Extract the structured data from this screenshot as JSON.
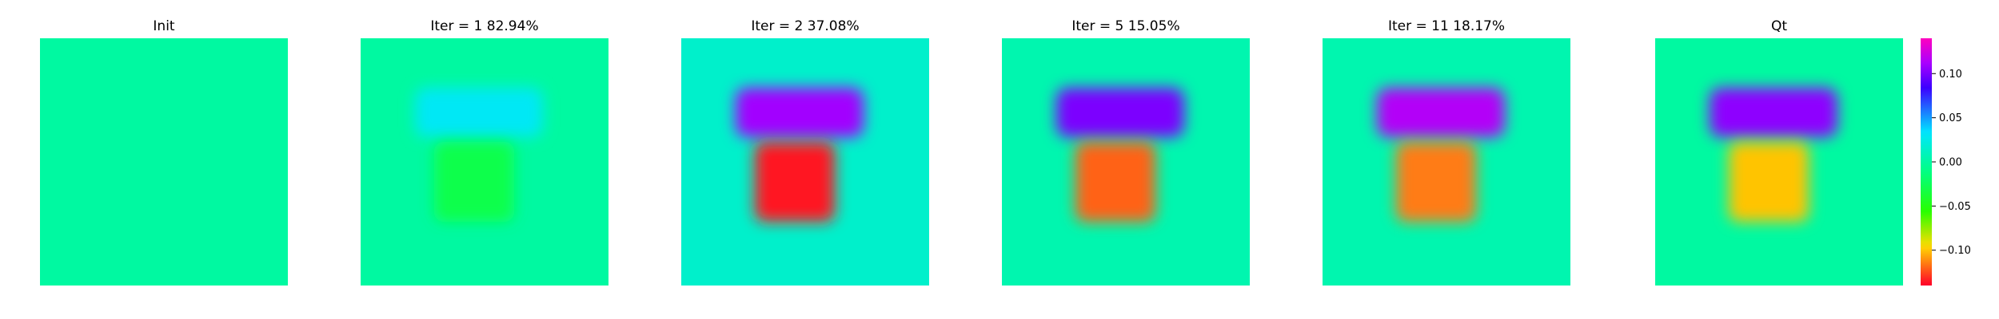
{
  "chart_data": {
    "type": "heatmap",
    "layout": "row of six field panels sharing one colorbar",
    "colormap": "gist_rainbow",
    "axes_visible": false,
    "grid": false,
    "panels": [
      {
        "title": "Init",
        "background_value": 0.0,
        "blocks": []
      },
      {
        "title": "Iter = 1    82.94%",
        "background_value": 0.0,
        "blocks": [
          {
            "name": "upper",
            "value": 0.03
          },
          {
            "name": "lower",
            "value": -0.03
          }
        ]
      },
      {
        "title": "Iter = 2    37.08%",
        "background_value": 0.015,
        "blocks": [
          {
            "name": "upper",
            "value": 0.11
          },
          {
            "name": "lower",
            "value": -0.135
          }
        ]
      },
      {
        "title": "Iter = 5    15.05%",
        "background_value": 0.005,
        "blocks": [
          {
            "name": "upper",
            "value": 0.1
          },
          {
            "name": "lower",
            "value": -0.12
          }
        ]
      },
      {
        "title": "Iter = 11    18.17%",
        "background_value": 0.005,
        "blocks": [
          {
            "name": "upper",
            "value": 0.115
          },
          {
            "name": "lower",
            "value": -0.115
          }
        ]
      },
      {
        "title": "Qt",
        "background_value": 0.0,
        "blocks": [
          {
            "name": "upper",
            "value": 0.105
          },
          {
            "name": "lower",
            "value": -0.1
          }
        ]
      }
    ],
    "colorbar": {
      "range": [
        -0.14,
        0.14
      ],
      "ticks": [
        0.1,
        0.05,
        0.0,
        -0.05,
        -0.1
      ],
      "tick_labels": [
        "0.10",
        "0.05",
        "0.00",
        "−0.05",
        "−0.10"
      ]
    }
  }
}
